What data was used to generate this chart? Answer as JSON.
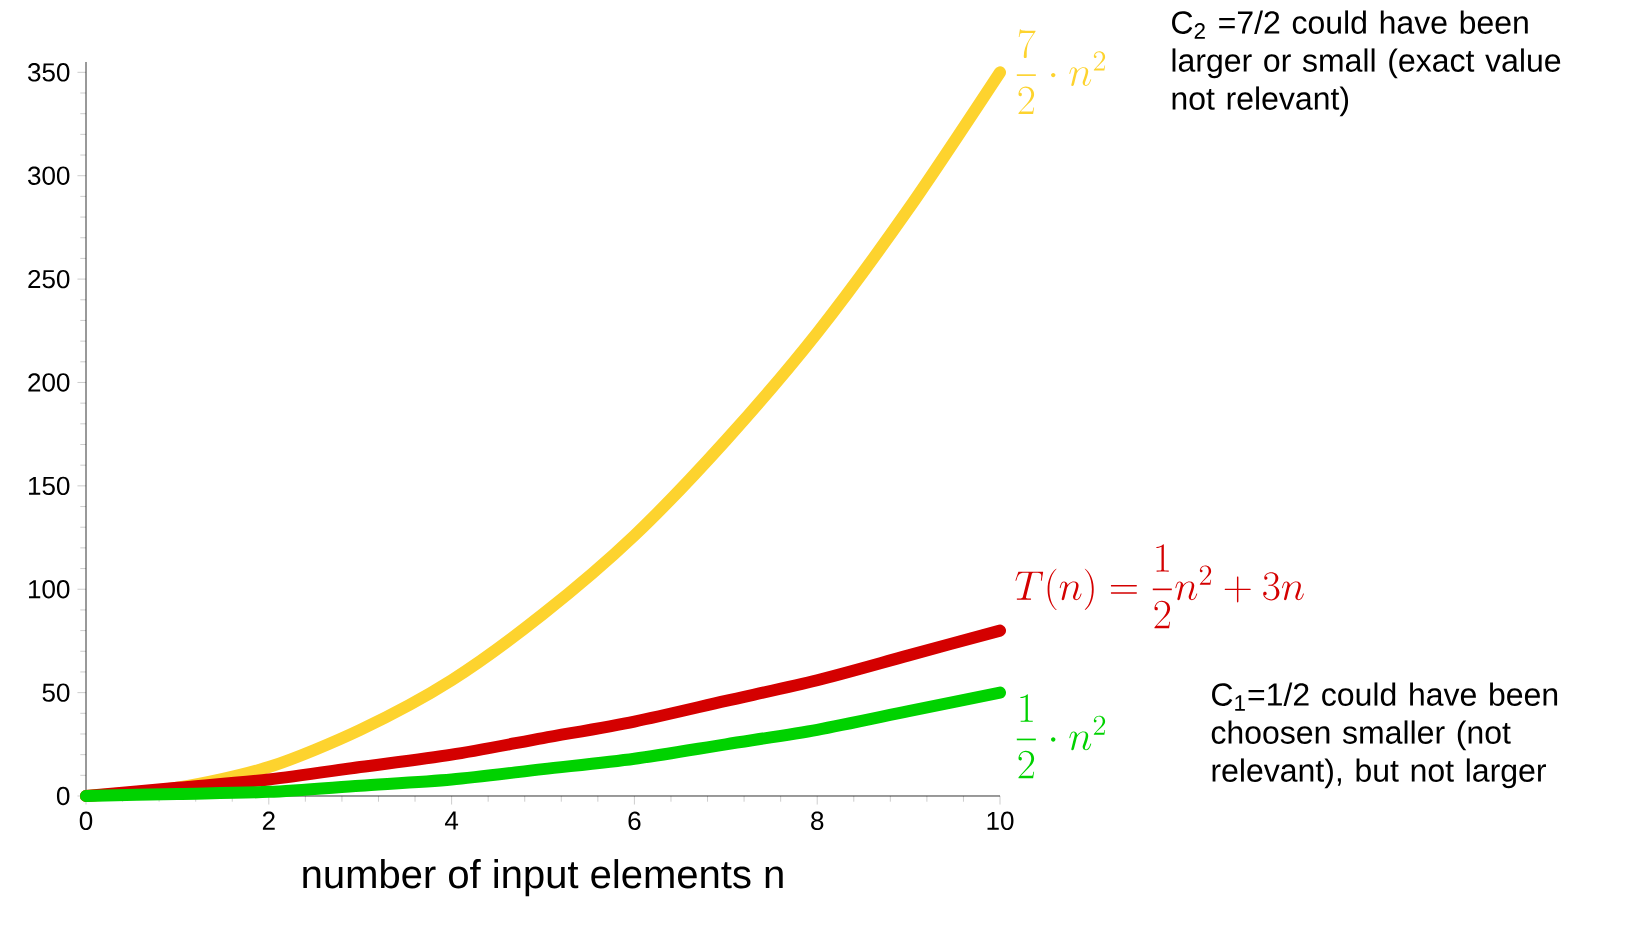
{
  "chart_data": {
    "type": "line",
    "xlabel": "number of input elements n",
    "x": [
      0,
      1,
      2,
      3,
      4,
      5,
      6,
      7,
      8,
      9,
      10
    ],
    "series": [
      {
        "name": "\\dfrac{7}{2}\\cdot n^2",
        "color": "#fdd32e",
        "values": [
          0,
          4,
          14,
          32,
          56,
          88,
          126,
          172,
          224,
          284,
          350
        ]
      },
      {
        "name": "T(n) = \\dfrac{1}{2}n^2 + 3n",
        "color": "#d40000",
        "values": [
          0,
          4,
          8,
          14,
          20,
          28,
          36,
          46,
          56,
          68,
          80
        ]
      },
      {
        "name": "\\dfrac{1}{2}\\cdot n^2",
        "color": "#00d200",
        "values": [
          0,
          1,
          2,
          5,
          8,
          13,
          18,
          25,
          32,
          41,
          50
        ]
      }
    ],
    "xlim": [
      0,
      10
    ],
    "ylim": [
      0,
      355
    ],
    "xticks": [
      0,
      2,
      4,
      6,
      8,
      10
    ],
    "yticks": [
      0,
      50,
      100,
      150,
      200,
      250,
      300,
      350
    ],
    "annotations": [
      "C$_{2}$ =7/2 could have been larger or small (exact value not relevant)",
      "C$_{1}$=1/2 could have been choosen smaller (not relevant), but not larger"
    ]
  }
}
